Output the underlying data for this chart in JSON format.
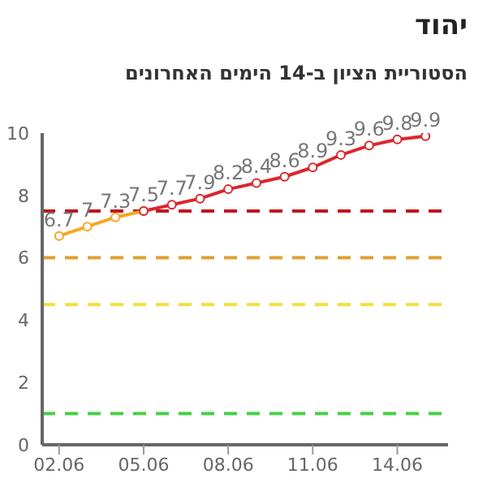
{
  "chart_data": {
    "type": "line",
    "title": "יהוד",
    "subtitle": "הסטוריית הציון ב-14 הימים האחרונים",
    "categories": [
      "02.06",
      null,
      null,
      "05.06",
      null,
      null,
      "08.06",
      null,
      null,
      "11.06",
      null,
      null,
      "14.06",
      null
    ],
    "series": [
      {
        "color": "#f5a623",
        "values": [
          6.7,
          7,
          7.3,
          7.5,
          null,
          null,
          null,
          null,
          null,
          null,
          null,
          null,
          null,
          null
        ],
        "value_labels": [
          "6.7",
          "7",
          "7.3",
          "7.5",
          null,
          null,
          null,
          null,
          null,
          null,
          null,
          null,
          null,
          null
        ]
      },
      {
        "color": "#d9272e",
        "values": [
          null,
          null,
          null,
          7.5,
          7.7,
          7.9,
          8.2,
          8.4,
          8.6,
          8.9,
          9.3,
          9.6,
          9.8,
          9.9
        ],
        "value_labels": [
          null,
          null,
          null,
          null,
          "7.7",
          "7.9",
          "8.2",
          "8.4",
          "8.6",
          "8.9",
          "9.3",
          "9.6",
          "9.8",
          "9.9"
        ]
      }
    ],
    "ylim": [
      0,
      10
    ],
    "yticks": [
      0,
      2,
      4,
      6,
      8,
      10
    ],
    "grid": false,
    "marker": "circle",
    "ref_lines": [
      {
        "axis": "y",
        "value": 7.5,
        "color": "#c0161c",
        "line_style": "dashed"
      },
      {
        "axis": "y",
        "value": 6,
        "color": "#e0a030",
        "line_style": "dashed"
      },
      {
        "axis": "y",
        "value": 4.5,
        "color": "#f0e040",
        "line_style": "dashed"
      },
      {
        "axis": "y",
        "value": 1,
        "color": "#44d044",
        "line_style": "dashed"
      }
    ]
  }
}
